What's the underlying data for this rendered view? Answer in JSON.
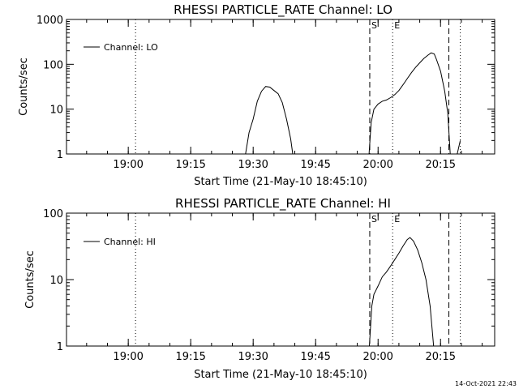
{
  "footer_timestamp": "14-Oct-2021 22:43",
  "chart_data": [
    {
      "type": "line",
      "title": "RHESSI PARTICLE_RATE Channel: LO",
      "xlabel": "Start Time (21-May-10 18:45:10)",
      "ylabel": "Counts/sec",
      "yscale": "log",
      "ylim": [
        1,
        1000
      ],
      "xlim": [
        "18:45:10",
        "20:28:00"
      ],
      "x_ticks": [
        "19:00",
        "19:15",
        "19:30",
        "19:45",
        "20:00",
        "20:15"
      ],
      "y_ticks": [
        "1",
        "10",
        "100",
        "1000"
      ],
      "legend": {
        "label": "Channel: LO",
        "position": "top-left"
      },
      "markers": [
        {
          "time": "19:58:00",
          "label": "S",
          "style": "dashed"
        },
        {
          "time": "20:03:30",
          "label": "E",
          "style": "dotted"
        },
        {
          "time": "20:17:00",
          "label": "",
          "style": "dashed"
        },
        {
          "time": "20:19:45",
          "label": "",
          "style": "dotted"
        },
        {
          "time": "19:01:45",
          "label": "",
          "style": "dotted"
        }
      ],
      "series": [
        {
          "name": "Channel: LO",
          "segments": [
            [
              [
                "19:28:10",
                1
              ],
              [
                "19:29:00",
                3
              ],
              [
                "19:30:00",
                6
              ],
              [
                "19:31:00",
                15
              ],
              [
                "19:32:00",
                25
              ],
              [
                "19:33:00",
                32
              ],
              [
                "19:34:00",
                31
              ],
              [
                "19:35:00",
                26
              ],
              [
                "19:36:00",
                22
              ],
              [
                "19:37:00",
                14
              ],
              [
                "19:38:00",
                6
              ],
              [
                "19:39:00",
                2.2
              ],
              [
                "19:39:30",
                1
              ]
            ],
            [
              [
                "19:57:50",
                1
              ],
              [
                "19:58:20",
                5
              ],
              [
                "19:59:00",
                10
              ],
              [
                "20:00:00",
                13
              ],
              [
                "20:01:00",
                15
              ],
              [
                "20:02:00",
                16
              ],
              [
                "20:03:00",
                18
              ],
              [
                "20:04:00",
                21
              ],
              [
                "20:05:00",
                26
              ],
              [
                "20:06:00",
                35
              ],
              [
                "20:07:00",
                48
              ],
              [
                "20:08:00",
                65
              ],
              [
                "20:09:00",
                85
              ],
              [
                "20:10:00",
                108
              ],
              [
                "20:11:00",
                135
              ],
              [
                "20:12:00",
                160
              ],
              [
                "20:12:45",
                180
              ],
              [
                "20:13:30",
                170
              ],
              [
                "20:14:00",
                130
              ],
              [
                "20:15:00",
                70
              ],
              [
                "20:16:00",
                25
              ],
              [
                "20:16:45",
                8
              ],
              [
                "20:17:20",
                1
              ]
            ],
            [
              [
                "20:19:00",
                1
              ],
              [
                "20:19:45",
                2
              ]
            ]
          ]
        }
      ]
    },
    {
      "type": "line",
      "title": "RHESSI PARTICLE_RATE Channel: HI",
      "xlabel": "Start Time (21-May-10 18:45:10)",
      "ylabel": "Counts/sec",
      "yscale": "log",
      "ylim": [
        1,
        100
      ],
      "xlim": [
        "18:45:10",
        "20:28:00"
      ],
      "x_ticks": [
        "19:00",
        "19:15",
        "19:30",
        "19:45",
        "20:00",
        "20:15"
      ],
      "y_ticks": [
        "1",
        "10",
        "100"
      ],
      "legend": {
        "label": "Channel: HI",
        "position": "top-left"
      },
      "markers": [
        {
          "time": "19:58:00",
          "label": "S",
          "style": "dashed"
        },
        {
          "time": "20:03:30",
          "label": "E",
          "style": "dotted"
        },
        {
          "time": "20:17:00",
          "label": "",
          "style": "dashed"
        },
        {
          "time": "20:19:45",
          "label": "",
          "style": "dotted"
        },
        {
          "time": "19:01:45",
          "label": "",
          "style": "dotted"
        }
      ],
      "series": [
        {
          "name": "Channel: HI",
          "segments": [
            [
              [
                "19:57:55",
                1
              ],
              [
                "19:58:30",
                4
              ],
              [
                "19:59:00",
                6
              ],
              [
                "20:00:00",
                8
              ],
              [
                "20:01:00",
                11
              ],
              [
                "20:02:00",
                13
              ],
              [
                "20:03:00",
                16
              ],
              [
                "20:04:00",
                20
              ],
              [
                "20:05:00",
                25
              ],
              [
                "20:06:00",
                32
              ],
              [
                "20:07:00",
                40
              ],
              [
                "20:07:40",
                43
              ],
              [
                "20:08:30",
                38
              ],
              [
                "20:09:30",
                28
              ],
              [
                "20:10:30",
                18
              ],
              [
                "20:11:30",
                10
              ],
              [
                "20:12:30",
                4
              ],
              [
                "20:13:20",
                1
              ]
            ]
          ]
        }
      ]
    }
  ]
}
